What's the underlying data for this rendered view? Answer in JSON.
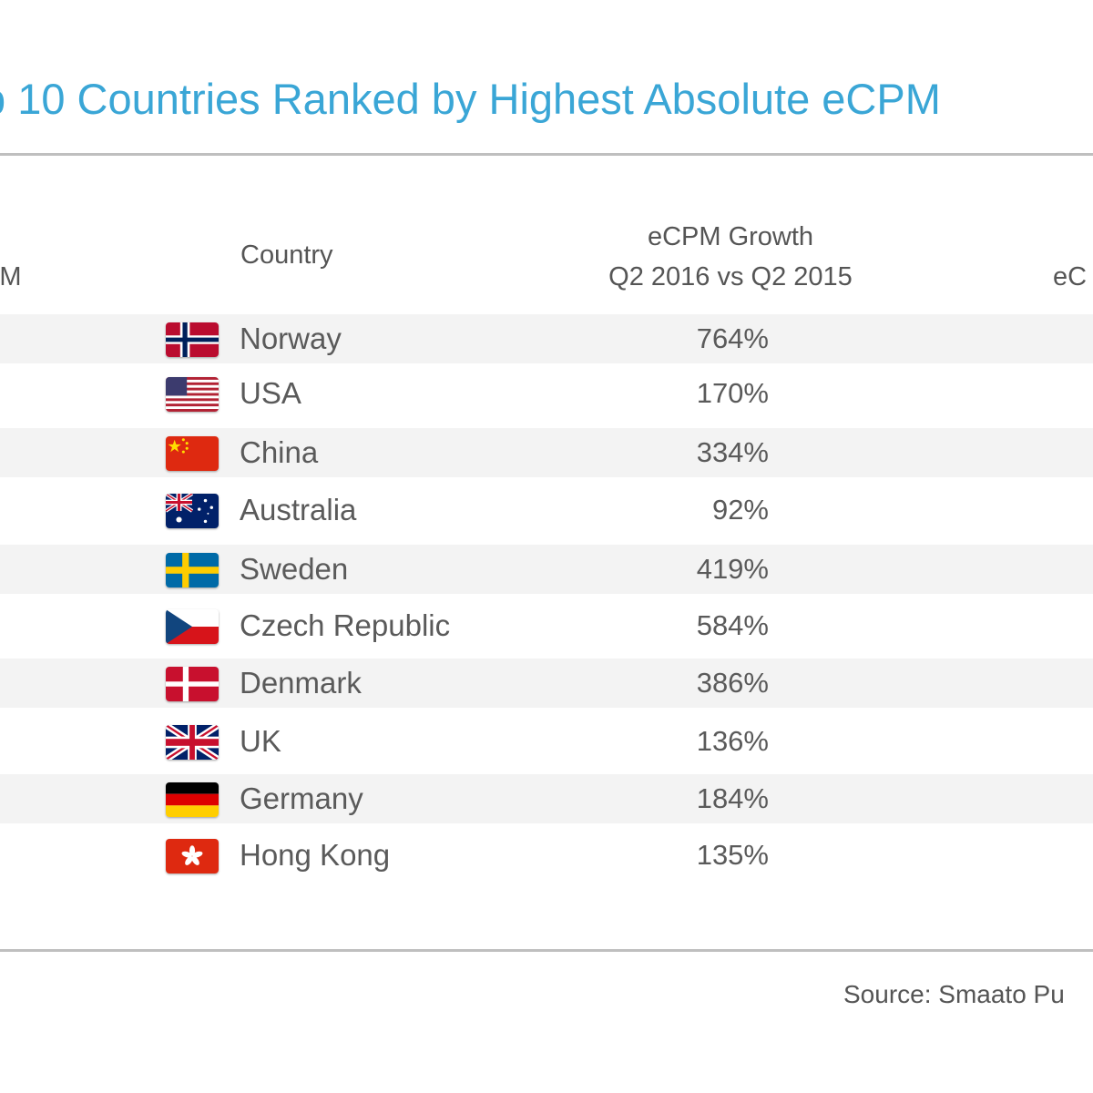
{
  "title": "p 10 Countries Ranked by Highest Absolute eCPM",
  "columns": {
    "left_partial": "PM",
    "country": "Country",
    "growth_line1": "eCPM Growth",
    "growth_line2": "Q2 2016 vs Q2 2015",
    "right_partial": "eC"
  },
  "source": "Source: Smaato Pu",
  "chart_data": {
    "type": "table",
    "title": "p 10 Countries Ranked by Highest Absolute eCPM",
    "columns": [
      "Country",
      "eCPM Growth Q2 2016 vs Q2 2015"
    ],
    "rows": [
      {
        "country": "Norway",
        "growth": "764%",
        "flag": "norway-flag-icon"
      },
      {
        "country": "USA",
        "growth": "170%",
        "flag": "usa-flag-icon"
      },
      {
        "country": "China",
        "growth": "334%",
        "flag": "china-flag-icon"
      },
      {
        "country": "Australia",
        "growth": "92%",
        "flag": "australia-flag-icon"
      },
      {
        "country": "Sweden",
        "growth": "419%",
        "flag": "sweden-flag-icon"
      },
      {
        "country": "Czech Republic",
        "growth": "584%",
        "flag": "czech-republic-flag-icon"
      },
      {
        "country": "Denmark",
        "growth": "386%",
        "flag": "denmark-flag-icon"
      },
      {
        "country": "UK",
        "growth": "136%",
        "flag": "uk-flag-icon"
      },
      {
        "country": "Germany",
        "growth": "184%",
        "flag": "germany-flag-icon"
      },
      {
        "country": "Hong Kong",
        "growth": "135%",
        "flag": "hong-kong-flag-icon"
      }
    ]
  }
}
